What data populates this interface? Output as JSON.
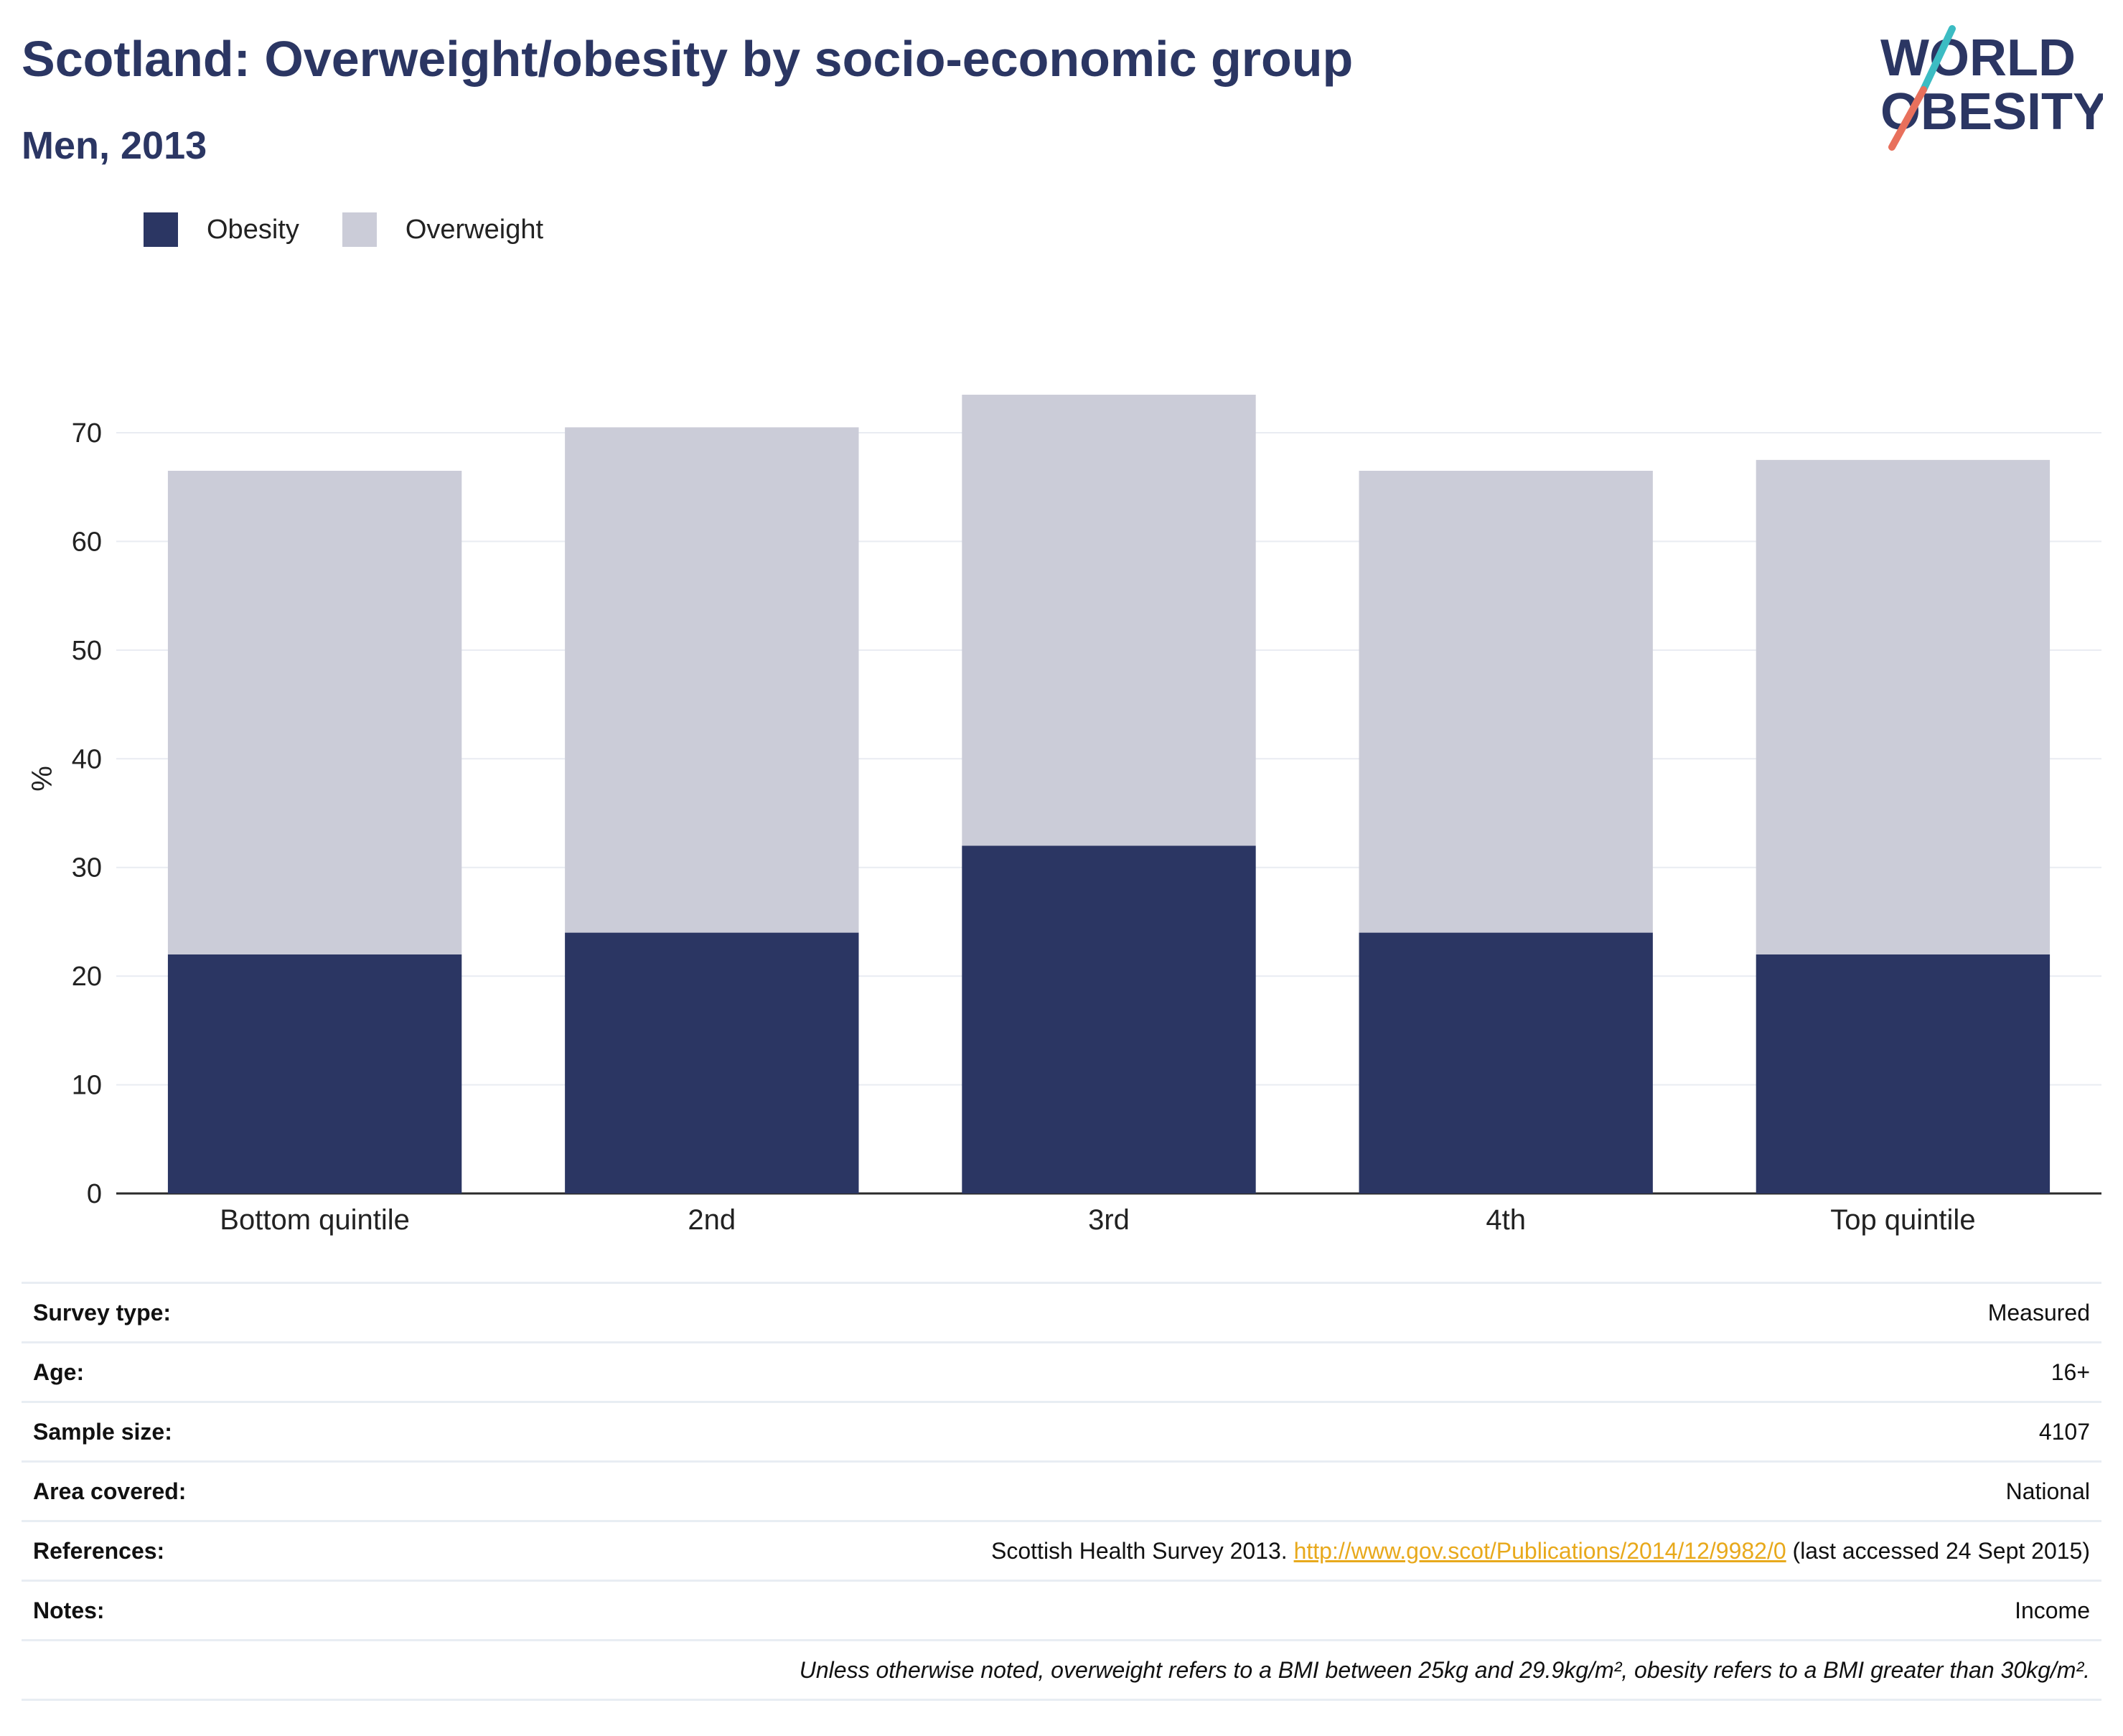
{
  "header": {
    "title": "Scotland: Overweight/obesity by socio-economic group",
    "subtitle": "Men, 2013"
  },
  "logo": {
    "line1": "WORLD",
    "line2": "OBESITY"
  },
  "colors": {
    "obesity": "#2b3663",
    "overweight": "#cbccd8",
    "brand": "#2b3663",
    "link": "#e8a91c"
  },
  "chart_data": {
    "type": "bar",
    "stacked": true,
    "categories": [
      "Bottom quintile",
      "2nd",
      "3rd",
      "4th",
      "Top quintile"
    ],
    "series": [
      {
        "name": "Obesity",
        "values": [
          22,
          24,
          32,
          24,
          22
        ]
      },
      {
        "name": "Overweight",
        "values": [
          44.5,
          46.5,
          41.5,
          42.5,
          45.5
        ]
      }
    ],
    "totals": [
      66.5,
      70.5,
      73.5,
      66.5,
      67.5
    ],
    "ylabel": "%",
    "yticks": [
      0,
      10,
      20,
      30,
      40,
      50,
      60,
      70
    ],
    "ylim": [
      0,
      73.5
    ],
    "legend": "top-left",
    "grid": true
  },
  "info": {
    "rows": [
      {
        "key": "Survey type:",
        "value": "Measured"
      },
      {
        "key": "Age:",
        "value": "16+"
      },
      {
        "key": "Sample size:",
        "value": "4107"
      },
      {
        "key": "Area covered:",
        "value": "National"
      },
      {
        "key": "References:",
        "value_prefix": "Scottish Health Survey 2013. ",
        "link": "http://www.gov.scot/Publications/2014/12/9982/0",
        "value_suffix": " (last accessed 24 Sept 2015)"
      },
      {
        "key": "Notes:",
        "value": "Income"
      }
    ],
    "footnote": "Unless otherwise noted, overweight refers to a BMI between 25kg and 29.9kg/m², obesity refers to a BMI greater than 30kg/m²."
  }
}
